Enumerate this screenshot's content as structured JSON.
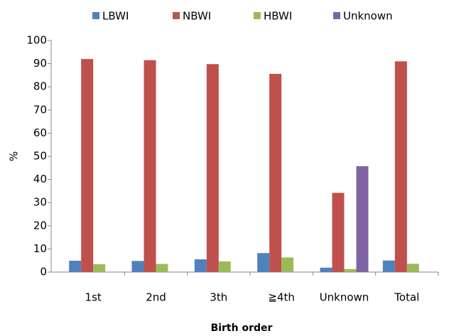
{
  "chart_data": {
    "type": "bar",
    "x_label": "Birth order",
    "y_label": "%",
    "categories": [
      "1st",
      "2nd",
      "3th",
      "≧4th",
      "Unknown",
      "Total"
    ],
    "series": [
      {
        "name": "LBWI",
        "color": "#4f81bd",
        "values": [
          4.9,
          4.8,
          5.5,
          8.2,
          1.9,
          5.0
        ]
      },
      {
        "name": "NBWI",
        "color": "#c0504d",
        "values": [
          92,
          91.5,
          89.8,
          85.6,
          34.2,
          91
        ]
      },
      {
        "name": "HBWI",
        "color": "#9bbb59",
        "values": [
          3.4,
          3.5,
          4.6,
          6.3,
          1.3,
          3.6
        ]
      },
      {
        "name": "Unknown",
        "color": "#8064a2",
        "values": [
          null,
          null,
          null,
          null,
          45.7,
          null
        ]
      }
    ],
    "ylim": [
      0,
      100
    ],
    "yticks": [
      0,
      10,
      20,
      30,
      40,
      50,
      60,
      70,
      80,
      90,
      100
    ],
    "legend": "top"
  }
}
